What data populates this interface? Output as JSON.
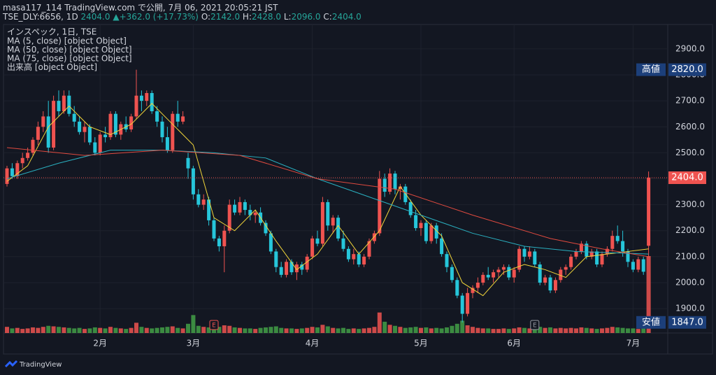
{
  "header": {
    "line1": "masa117_114 TradingView.com で公開, 7月 06, 2021 20:05:21 JST",
    "symbol": "TSE_DLY:6656, 1D",
    "last": "2404.0",
    "arrow": "▲",
    "change": "+362.0 (+17.73%)",
    "o_label": "O:",
    "o": "2142.0",
    "h_label": "H:",
    "h": "2428.0",
    "l_label": "L:",
    "l": "2096.0",
    "c_label": "C:",
    "c": "2404.0"
  },
  "footer": {
    "brand": "TradingView"
  },
  "chart_data": {
    "type": "candlestick",
    "title": "インスペック, 1日, TSE",
    "legend": [
      "MA (5, close) [object Object]",
      "MA (50, close) [object Object]",
      "MA (75, close) [object Object]",
      "出来高 [object Object]"
    ],
    "up_color": "#ef5350",
    "down_color": "#26c6da",
    "vol_up_color": "#ef5350",
    "vol_down_color": "#43a047",
    "ylim": [
      1806,
      2994
    ],
    "yticks": [
      {
        "value": 1900,
        "label": "1900.0"
      },
      {
        "value": 2000,
        "label": "2000.0"
      },
      {
        "value": 2100,
        "label": "2100.0"
      },
      {
        "value": 2200,
        "label": "2200.0"
      },
      {
        "value": 2300,
        "label": "2300.0"
      },
      {
        "value": 2400,
        "label": "2400.0"
      },
      {
        "value": 2500,
        "label": "2500.0"
      },
      {
        "value": 2600,
        "label": "2600.0"
      },
      {
        "value": 2700,
        "label": "2700.0"
      },
      {
        "value": 2800,
        "label": "2800.0"
      },
      {
        "value": 2900,
        "label": "2900.0"
      }
    ],
    "grid": true,
    "xlabels": [
      {
        "index": 18,
        "label": "2月"
      },
      {
        "index": 36,
        "label": "3月"
      },
      {
        "index": 59,
        "label": "4月"
      },
      {
        "index": 80,
        "label": "5月"
      },
      {
        "index": 98,
        "label": "6月"
      },
      {
        "index": 121,
        "label": "7月"
      }
    ],
    "events": [
      {
        "index": 40,
        "label": "E",
        "color": "#ef5350"
      },
      {
        "index": 102,
        "label": "E",
        "color": "#9598a1"
      }
    ],
    "price_labels": [
      {
        "name": "高値",
        "value": 2820,
        "label": "2820.0",
        "color": "#1c3f7a"
      },
      {
        "value": 2404,
        "label": "2404.0",
        "color": "#ef5350"
      },
      {
        "name": "安値",
        "value": 1847,
        "label": "1847.0",
        "color": "#1c3f7a"
      }
    ],
    "ohlc": [
      [
        2380,
        2450,
        2370,
        2440
      ],
      [
        2440,
        2460,
        2400,
        2410
      ],
      [
        2410,
        2470,
        2400,
        2460
      ],
      [
        2460,
        2500,
        2440,
        2480
      ],
      [
        2480,
        2520,
        2470,
        2500
      ],
      [
        2500,
        2560,
        2490,
        2550
      ],
      [
        2550,
        2620,
        2530,
        2600
      ],
      [
        2600,
        2660,
        2580,
        2640
      ],
      [
        2640,
        2700,
        2500,
        2520
      ],
      [
        2520,
        2720,
        2510,
        2700
      ],
      [
        2700,
        2740,
        2640,
        2660
      ],
      [
        2660,
        2740,
        2650,
        2720
      ],
      [
        2720,
        2740,
        2640,
        2650
      ],
      [
        2650,
        2680,
        2600,
        2620
      ],
      [
        2620,
        2640,
        2570,
        2580
      ],
      [
        2580,
        2620,
        2540,
        2600
      ],
      [
        2600,
        2610,
        2530,
        2540
      ],
      [
        2540,
        2560,
        2490,
        2500
      ],
      [
        2500,
        2580,
        2490,
        2570
      ],
      [
        2570,
        2600,
        2540,
        2560
      ],
      [
        2560,
        2660,
        2550,
        2650
      ],
      [
        2650,
        2660,
        2560,
        2570
      ],
      [
        2570,
        2620,
        2550,
        2610
      ],
      [
        2610,
        2640,
        2580,
        2590
      ],
      [
        2590,
        2650,
        2580,
        2640
      ],
      [
        2640,
        2820,
        2630,
        2720
      ],
      [
        2720,
        2740,
        2660,
        2700
      ],
      [
        2700,
        2740,
        2680,
        2730
      ],
      [
        2730,
        2740,
        2650,
        2660
      ],
      [
        2660,
        2680,
        2600,
        2620
      ],
      [
        2620,
        2640,
        2540,
        2560
      ],
      [
        2560,
        2600,
        2500,
        2510
      ],
      [
        2510,
        2660,
        2500,
        2650
      ],
      [
        2650,
        2700,
        2600,
        2620
      ],
      [
        2620,
        2660,
        2610,
        2640
      ],
      [
        2480,
        2500,
        2400,
        2440
      ],
      [
        2440,
        2450,
        2320,
        2340
      ],
      [
        2340,
        2360,
        2290,
        2300
      ],
      [
        2300,
        2340,
        2280,
        2320
      ],
      [
        2320,
        2330,
        2220,
        2240
      ],
      [
        2240,
        2250,
        2160,
        2170
      ],
      [
        2170,
        2180,
        2120,
        2140
      ],
      [
        2140,
        2220,
        2040,
        2200
      ],
      [
        2200,
        2320,
        2190,
        2300
      ],
      [
        2300,
        2320,
        2260,
        2270
      ],
      [
        2270,
        2330,
        2260,
        2310
      ],
      [
        2310,
        2320,
        2260,
        2280
      ],
      [
        2280,
        2300,
        2240,
        2260
      ],
      [
        2260,
        2280,
        2230,
        2270
      ],
      [
        2270,
        2290,
        2220,
        2230
      ],
      [
        2230,
        2240,
        2180,
        2190
      ],
      [
        2190,
        2200,
        2110,
        2120
      ],
      [
        2120,
        2130,
        2040,
        2060
      ],
      [
        2060,
        2080,
        2020,
        2030
      ],
      [
        2030,
        2090,
        2020,
        2080
      ],
      [
        2080,
        2090,
        2030,
        2040
      ],
      [
        2040,
        2080,
        2010,
        2070
      ],
      [
        2070,
        2080,
        2030,
        2050
      ],
      [
        2050,
        2110,
        2040,
        2100
      ],
      [
        2100,
        2180,
        2090,
        2170
      ],
      [
        2170,
        2200,
        2140,
        2150
      ],
      [
        2150,
        2330,
        2140,
        2310
      ],
      [
        2310,
        2320,
        2200,
        2220
      ],
      [
        2220,
        2260,
        2190,
        2250
      ],
      [
        2250,
        2260,
        2160,
        2170
      ],
      [
        2170,
        2200,
        2120,
        2130
      ],
      [
        2130,
        2140,
        2080,
        2090
      ],
      [
        2090,
        2130,
        2070,
        2110
      ],
      [
        2110,
        2120,
        2060,
        2070
      ],
      [
        2070,
        2110,
        2060,
        2100
      ],
      [
        2100,
        2170,
        2090,
        2160
      ],
      [
        2160,
        2200,
        2150,
        2190
      ],
      [
        2190,
        2430,
        2180,
        2400
      ],
      [
        2400,
        2420,
        2330,
        2350
      ],
      [
        2350,
        2440,
        2340,
        2420
      ],
      [
        2420,
        2430,
        2340,
        2360
      ],
      [
        2360,
        2380,
        2320,
        2370
      ],
      [
        2370,
        2380,
        2300,
        2310
      ],
      [
        2310,
        2320,
        2250,
        2260
      ],
      [
        2260,
        2280,
        2200,
        2210
      ],
      [
        2210,
        2240,
        2180,
        2230
      ],
      [
        2230,
        2240,
        2150,
        2160
      ],
      [
        2160,
        2230,
        2150,
        2220
      ],
      [
        2220,
        2230,
        2150,
        2170
      ],
      [
        2170,
        2190,
        2100,
        2110
      ],
      [
        2110,
        2120,
        2040,
        2060
      ],
      [
        2060,
        2070,
        2000,
        2010
      ],
      [
        2010,
        2020,
        1940,
        1950
      ],
      [
        1950,
        1960,
        1847,
        1880
      ],
      [
        1880,
        1980,
        1870,
        1960
      ],
      [
        1960,
        1990,
        1940,
        1980
      ],
      [
        1980,
        2020,
        1960,
        2000
      ],
      [
        2000,
        2040,
        1990,
        2030
      ],
      [
        2030,
        2060,
        2010,
        2020
      ],
      [
        2020,
        2050,
        2000,
        2040
      ],
      [
        2040,
        2060,
        2020,
        2050
      ],
      [
        2050,
        2070,
        2030,
        2060
      ],
      [
        2060,
        2070,
        2010,
        2020
      ],
      [
        2020,
        2060,
        2000,
        2050
      ],
      [
        2050,
        2140,
        2040,
        2130
      ],
      [
        2130,
        2140,
        2080,
        2100
      ],
      [
        2100,
        2140,
        2090,
        2120
      ],
      [
        2120,
        2130,
        2060,
        2070
      ],
      [
        2070,
        2080,
        1990,
        2000
      ],
      [
        2000,
        2030,
        1990,
        2020
      ],
      [
        2020,
        2030,
        1960,
        1970
      ],
      [
        1970,
        2020,
        1960,
        2010
      ],
      [
        2010,
        2060,
        2000,
        2050
      ],
      [
        2050,
        2070,
        2030,
        2060
      ],
      [
        2060,
        2110,
        2050,
        2100
      ],
      [
        2100,
        2130,
        2090,
        2120
      ],
      [
        2120,
        2160,
        2110,
        2150
      ],
      [
        2150,
        2160,
        2090,
        2100
      ],
      [
        2100,
        2130,
        2090,
        2120
      ],
      [
        2120,
        2130,
        2060,
        2070
      ],
      [
        2070,
        2120,
        2060,
        2110
      ],
      [
        2110,
        2140,
        2100,
        2130
      ],
      [
        2130,
        2200,
        2120,
        2180
      ],
      [
        2180,
        2220,
        2150,
        2160
      ],
      [
        2160,
        2200,
        2100,
        2120
      ],
      [
        2120,
        2130,
        2060,
        2080
      ],
      [
        2080,
        2090,
        2040,
        2050
      ],
      [
        2050,
        2100,
        2040,
        2090
      ],
      [
        2090,
        2100,
        2030,
        2042
      ],
      [
        2142,
        2428,
        2096,
        2404
      ]
    ],
    "volume": [
      12,
      9,
      10,
      8,
      9,
      11,
      10,
      12,
      14,
      13,
      12,
      11,
      10,
      9,
      10,
      8,
      9,
      11,
      10,
      9,
      12,
      10,
      9,
      8,
      10,
      20,
      12,
      10,
      9,
      10,
      11,
      12,
      13,
      10,
      9,
      18,
      35,
      14,
      12,
      11,
      13,
      12,
      15,
      14,
      11,
      10,
      9,
      9,
      8,
      10,
      11,
      12,
      13,
      10,
      9,
      9,
      8,
      9,
      10,
      12,
      11,
      16,
      13,
      10,
      9,
      10,
      8,
      9,
      8,
      9,
      10,
      12,
      40,
      22,
      16,
      14,
      12,
      10,
      11,
      12,
      10,
      11,
      9,
      10,
      9,
      11,
      14,
      18,
      24,
      15,
      12,
      10,
      9,
      9,
      8,
      8,
      9,
      8,
      9,
      11,
      10,
      9,
      9,
      12,
      10,
      11,
      9,
      10,
      9,
      10,
      9,
      11,
      10,
      9,
      8,
      9,
      10,
      12,
      11,
      10,
      9,
      9,
      8,
      10,
      150
    ],
    "ma": [
      {
        "name": "MA5",
        "color": "#f0d43a",
        "x": [
          0,
          4,
          8,
          12,
          16,
          20,
          24,
          28,
          32,
          36,
          40,
          44,
          48,
          52,
          56,
          60,
          64,
          68,
          72,
          76,
          80,
          84,
          88,
          92,
          96,
          100,
          104,
          108,
          112,
          116,
          120,
          124
        ],
        "values": [
          2390,
          2450,
          2600,
          2680,
          2600,
          2570,
          2610,
          2690,
          2610,
          2530,
          2250,
          2200,
          2280,
          2160,
          2050,
          2110,
          2220,
          2110,
          2200,
          2370,
          2260,
          2180,
          2000,
          1950,
          2040,
          2070,
          2050,
          2020,
          2100,
          2110,
          2120,
          2130
        ]
      },
      {
        "name": "MA50",
        "color": "#2ab0c0",
        "x": [
          0,
          10,
          20,
          30,
          40,
          50,
          60,
          70,
          80,
          90,
          100,
          110,
          124
        ],
        "values": [
          2400,
          2460,
          2510,
          2510,
          2500,
          2480,
          2400,
          2330,
          2260,
          2190,
          2140,
          2120,
          2110
        ]
      },
      {
        "name": "MA75",
        "color": "#e04a3f",
        "x": [
          0,
          15,
          30,
          45,
          60,
          75,
          90,
          105,
          115,
          124
        ],
        "values": [
          2520,
          2490,
          2510,
          2490,
          2400,
          2360,
          2260,
          2170,
          2130,
          2100
        ]
      }
    ]
  }
}
